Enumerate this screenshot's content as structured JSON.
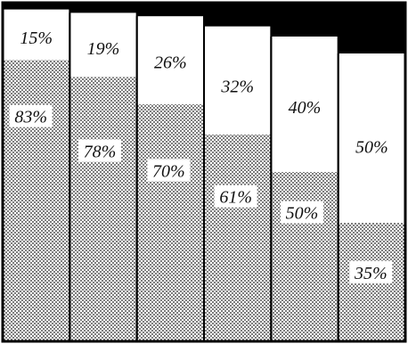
{
  "chart_data": {
    "type": "bar",
    "stacked": true,
    "categories": [
      "",
      "",
      "",
      "",
      "",
      ""
    ],
    "series": [
      {
        "key": "bottom",
        "pattern": "dotted",
        "values": [
          83,
          78,
          70,
          61,
          50,
          35
        ],
        "labels": [
          "83%",
          "78%",
          "70%",
          "61%",
          "50%",
          "35%"
        ]
      },
      {
        "key": "middle",
        "pattern": "plain",
        "values": [
          15,
          19,
          26,
          32,
          40,
          50
        ],
        "labels": [
          "15%",
          "19%",
          "26%",
          "32%",
          "40%",
          "50%"
        ]
      },
      {
        "key": "top",
        "pattern": "solid",
        "values": [
          2,
          3,
          4,
          7,
          10,
          15
        ],
        "labels": [
          "",
          "",
          "",
          "",
          "",
          ""
        ]
      }
    ],
    "ylim": [
      0,
      100
    ],
    "title": "",
    "xlabel": "",
    "ylabel": "",
    "grid": false,
    "legend": "none"
  },
  "colors": {
    "background": "#000000",
    "border": "#000000",
    "bar_fill": "#ffffff",
    "dot": "#555555",
    "text": "#111111"
  }
}
